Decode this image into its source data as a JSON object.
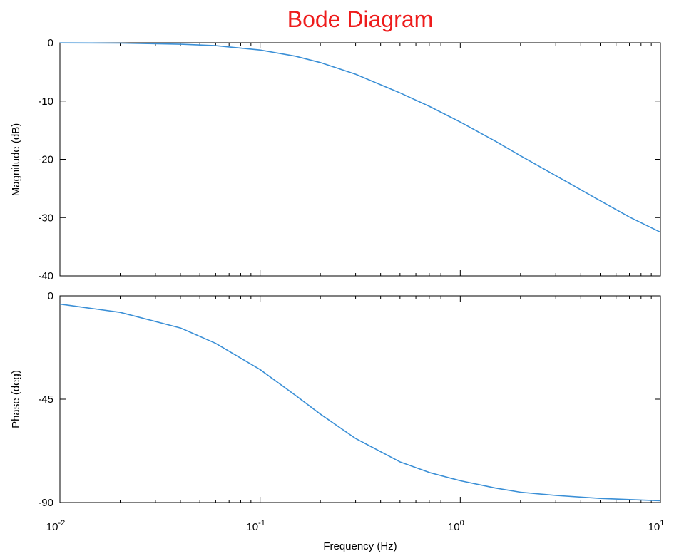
{
  "colors": {
    "title": "#ee1c1c",
    "series": "#3a8fd6",
    "axis": "#000000",
    "background": "#ffffff"
  },
  "chart_data": [
    {
      "type": "line",
      "title": "Bode Diagram",
      "xlabel": "",
      "ylabel": "Magnitude (dB)",
      "xscale": "log",
      "xlim": [
        0.01,
        10
      ],
      "ylim": [
        -40,
        0
      ],
      "yticks": [
        {
          "value": 0,
          "label": "0"
        },
        {
          "value": -10,
          "label": "-10"
        },
        {
          "value": -20,
          "label": "-20"
        },
        {
          "value": -30,
          "label": "-30"
        },
        {
          "value": -40,
          "label": "-40"
        }
      ],
      "grid": false,
      "series": [
        {
          "x": [
            0.01,
            0.02,
            0.04,
            0.06,
            0.1,
            0.15,
            0.2,
            0.3,
            0.5,
            0.7,
            1,
            1.5,
            2,
            3,
            5,
            7,
            10
          ],
          "values": [
            -0.02,
            -0.06,
            -0.25,
            -0.5,
            -1.25,
            -2.3,
            -3.4,
            -5.4,
            -8.6,
            -10.9,
            -13.6,
            -16.9,
            -19.4,
            -22.8,
            -27.1,
            -29.9,
            -32.5
          ]
        }
      ]
    },
    {
      "type": "line",
      "title": "",
      "xlabel": "Frequency  (Hz)",
      "ylabel": "Phase (deg)",
      "xscale": "log",
      "xlim": [
        0.01,
        10
      ],
      "ylim": [
        -90,
        0
      ],
      "xticks": [
        {
          "value": 0.01,
          "base": "10",
          "exp": "-2"
        },
        {
          "value": 0.1,
          "base": "10",
          "exp": "-1"
        },
        {
          "value": 1,
          "base": "10",
          "exp": "0"
        },
        {
          "value": 10,
          "base": "10",
          "exp": "1"
        }
      ],
      "yticks": [
        {
          "value": 0,
          "label": "0"
        },
        {
          "value": -45,
          "label": "-45"
        },
        {
          "value": -90,
          "label": "-90"
        }
      ],
      "grid": false,
      "series": [
        {
          "x": [
            0.01,
            0.02,
            0.04,
            0.06,
            0.1,
            0.15,
            0.2,
            0.3,
            0.5,
            0.7,
            1,
            1.5,
            2,
            3,
            5,
            7,
            10
          ],
          "values": [
            -3.6,
            -7.2,
            -14.0,
            -20.7,
            -32.1,
            -43.3,
            -51.5,
            -62.1,
            -72.3,
            -76.9,
            -80.5,
            -83.7,
            -85.5,
            -86.9,
            -88.2,
            -88.7,
            -89.2
          ]
        }
      ]
    }
  ]
}
